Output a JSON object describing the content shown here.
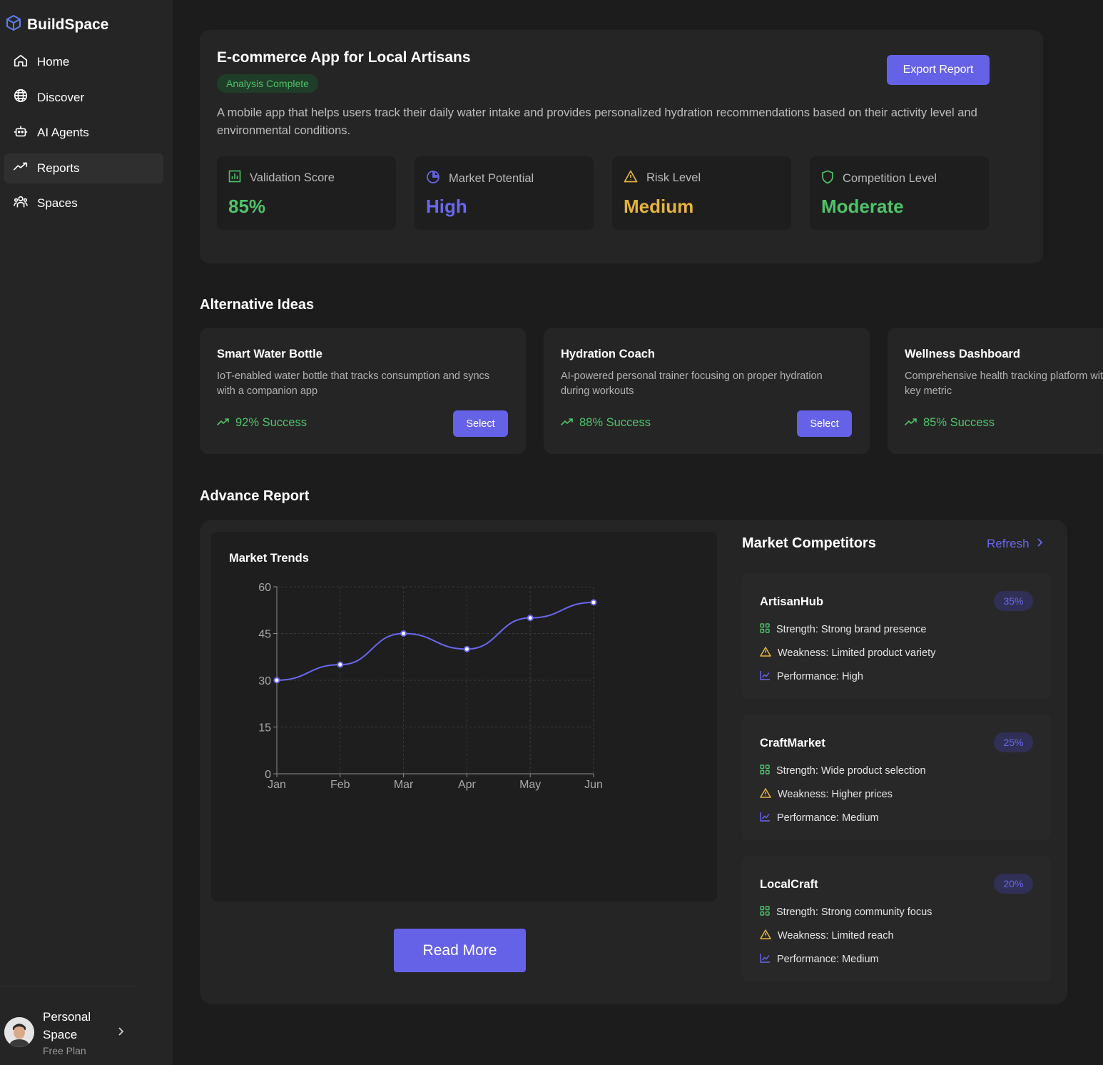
{
  "app": {
    "name": "BuildSpace"
  },
  "nav": [
    {
      "id": "home",
      "label": "Home",
      "icon": "home-icon"
    },
    {
      "id": "discover",
      "label": "Discover",
      "icon": "globe-icon"
    },
    {
      "id": "ai-agents",
      "label": "AI Agents",
      "icon": "robot-icon"
    },
    {
      "id": "reports",
      "label": "Reports",
      "icon": "trend-icon",
      "active": true
    },
    {
      "id": "spaces",
      "label": "Spaces",
      "icon": "users-icon"
    }
  ],
  "profile": {
    "name": "Personal Space",
    "plan": "Free Plan"
  },
  "summary": {
    "title": "E-commerce App for Local Artisans",
    "status": "Analysis Complete",
    "export_label": "Export Report",
    "description": "A mobile app that helps users track their daily water intake and provides personalized hydration recommendations based on their activity level and environmental conditions.",
    "metrics": [
      {
        "label": "Validation Score",
        "value": "85%",
        "color": "#4fc36a",
        "icon": "bar-chart-icon"
      },
      {
        "label": "Market Potential",
        "value": "High",
        "color": "#6a67f0",
        "icon": "pie-chart-icon"
      },
      {
        "label": "Risk Level",
        "value": "Medium",
        "color": "#e6b43c",
        "icon": "warning-icon"
      },
      {
        "label": "Competition Level",
        "value": "Moderate",
        "color": "#4fc36a",
        "icon": "shield-icon"
      }
    ]
  },
  "alternatives": {
    "title": "Alternative Ideas",
    "select_label": "Select",
    "items": [
      {
        "title": "Smart Water Bottle",
        "description": "IoT-enabled water bottle that tracks consumption and syncs with a companion app",
        "success": "92% Success"
      },
      {
        "title": "Hydration Coach",
        "description": "AI-powered personal trainer focusing on proper hydration during workouts",
        "success": "88% Success"
      },
      {
        "title": "Wellness Dashboard",
        "description": "Comprehensive health tracking platform with hydration as a key metric",
        "success": "85% Success"
      }
    ]
  },
  "advance": {
    "title": "Advance Report",
    "read_more_label": "Read More",
    "competitors_title": "Market Competitors",
    "refresh_label": "Refresh",
    "competitors": [
      {
        "name": "ArtisanHub",
        "share": "35%",
        "strength": "Strength: Strong brand presence",
        "weakness": "Weakness: Limited product variety",
        "performance": "Performance: High"
      },
      {
        "name": "CraftMarket",
        "share": "25%",
        "strength": "Strength: Wide product selection",
        "weakness": "Weakness: Higher prices",
        "performance": "Performance: Medium"
      },
      {
        "name": "LocalCraft",
        "share": "20%",
        "strength": "Strength: Strong community focus",
        "weakness": "Weakness: Limited reach",
        "performance": "Performance: Medium"
      }
    ]
  },
  "chart_data": {
    "type": "line",
    "title": "Market Trends",
    "categories": [
      "Jan",
      "Feb",
      "Mar",
      "Apr",
      "May",
      "Jun"
    ],
    "values": [
      30,
      35,
      45,
      40,
      50,
      55
    ],
    "ylim": [
      0,
      60
    ],
    "yticks": [
      0,
      15,
      30,
      45,
      60
    ],
    "xlabel": "",
    "ylabel": "",
    "grid": true,
    "color": "#6a67f0"
  },
  "colors": {
    "accent": "#6562e8",
    "success": "#4fc36a",
    "warning": "#e6b43c"
  }
}
